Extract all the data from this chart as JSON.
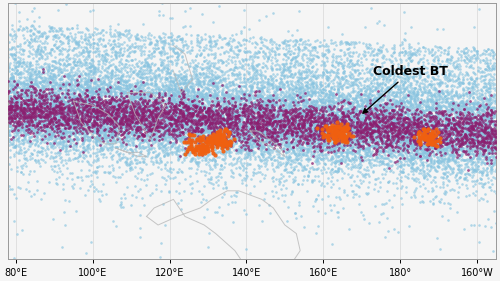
{
  "lon_min": 78,
  "lon_max": 205,
  "lat_min": -32,
  "lat_max": 28,
  "background_color": "#f5f5f5",
  "grid_color": "#d0d0d0",
  "xticks": [
    80,
    100,
    120,
    140,
    160,
    180,
    200
  ],
  "xtick_labels": [
    "80°E",
    "100°E",
    "120°E",
    "140°E",
    "160°E",
    "180°",
    "160°W"
  ],
  "annotation_text": "Coldest BT",
  "annotation_lon": 173.0,
  "annotation_lat": 10.5,
  "arrow_lon": 169.5,
  "arrow_lat": 1.5,
  "blue_color": "#89c4e0",
  "purple_color": "#8b2070",
  "orange_color": "#f06010",
  "dot_size_blue": 3.5,
  "dot_size_purple": 4.0,
  "dot_size_orange": 9.0,
  "n_blue": 22000,
  "n_purple": 4500,
  "n_orange_c1": 180,
  "n_orange_c2": 100,
  "n_orange_c3": 70,
  "seed": 123,
  "coastline_color": "#b8b8b8",
  "coastline_lw": 0.7,
  "fontsize_tick": 7,
  "fontsize_annot": 9
}
